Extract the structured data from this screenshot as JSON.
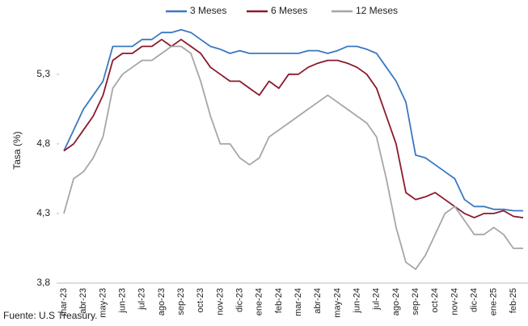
{
  "chart_data": {
    "type": "line",
    "y_label": "Tasa (%)",
    "source": "Fuente: U.S Treasury.",
    "categories": [
      "mar-23",
      null,
      "abr-23",
      null,
      "may-23",
      null,
      "jun-23",
      null,
      "jul-23",
      null,
      "ago-23",
      null,
      "sep-23",
      null,
      "oct-23",
      null,
      "nov-23",
      null,
      "dic-23",
      null,
      "ene-24",
      null,
      "feb-24",
      null,
      "mar-24",
      null,
      "abr-24",
      null,
      "may-24",
      null,
      "jun-24",
      null,
      "jul-24",
      null,
      "ago-24",
      null,
      "sep-24",
      null,
      "oct-24",
      null,
      "nov-24",
      null,
      "dic-24",
      null,
      "ene-25",
      null,
      "feb-25",
      null
    ],
    "series": [
      {
        "name": "3 Meses",
        "color": "#3b78c0",
        "values": [
          4.75,
          4.9,
          5.05,
          5.15,
          5.25,
          5.5,
          5.5,
          5.5,
          5.55,
          5.55,
          5.6,
          5.6,
          5.62,
          5.6,
          5.55,
          5.5,
          5.48,
          5.45,
          5.47,
          5.45,
          5.45,
          5.45,
          5.45,
          5.45,
          5.45,
          5.47,
          5.47,
          5.45,
          5.47,
          5.5,
          5.5,
          5.48,
          5.45,
          5.35,
          5.25,
          5.1,
          4.72,
          4.7,
          4.65,
          4.6,
          4.55,
          4.4,
          4.35,
          4.35,
          4.33,
          4.33,
          4.32,
          4.32
        ]
      },
      {
        "name": "6 Meses",
        "color": "#8b1a2b",
        "values": [
          4.75,
          4.8,
          4.9,
          5.0,
          5.15,
          5.4,
          5.45,
          5.45,
          5.5,
          5.5,
          5.55,
          5.5,
          5.55,
          5.5,
          5.45,
          5.35,
          5.3,
          5.25,
          5.25,
          5.2,
          5.15,
          5.25,
          5.2,
          5.3,
          5.3,
          5.35,
          5.38,
          5.4,
          5.4,
          5.38,
          5.35,
          5.3,
          5.2,
          5.0,
          4.8,
          4.45,
          4.4,
          4.42,
          4.45,
          4.4,
          4.35,
          4.3,
          4.27,
          4.3,
          4.3,
          4.32,
          4.28,
          4.27
        ]
      },
      {
        "name": "12 Meses",
        "color": "#a6a6a6",
        "values": [
          4.3,
          4.55,
          4.6,
          4.7,
          4.85,
          5.2,
          5.3,
          5.35,
          5.4,
          5.4,
          5.45,
          5.5,
          5.5,
          5.45,
          5.25,
          5.0,
          4.8,
          4.8,
          4.7,
          4.65,
          4.7,
          4.85,
          4.9,
          4.95,
          5.0,
          5.05,
          5.1,
          5.15,
          5.1,
          5.05,
          5.0,
          4.95,
          4.85,
          4.55,
          4.2,
          3.95,
          3.9,
          4.0,
          4.15,
          4.3,
          4.35,
          4.25,
          4.15,
          4.15,
          4.2,
          4.15,
          4.05,
          4.05
        ]
      }
    ],
    "ylim": [
      3.8,
      5.7
    ],
    "yticks": [
      {
        "value": 3.8,
        "label": "3,8"
      },
      {
        "value": 4.3,
        "label": "4,3"
      },
      {
        "value": 4.8,
        "label": "4,8"
      },
      {
        "value": 5.3,
        "label": "5,3"
      }
    ],
    "legend": "top"
  }
}
